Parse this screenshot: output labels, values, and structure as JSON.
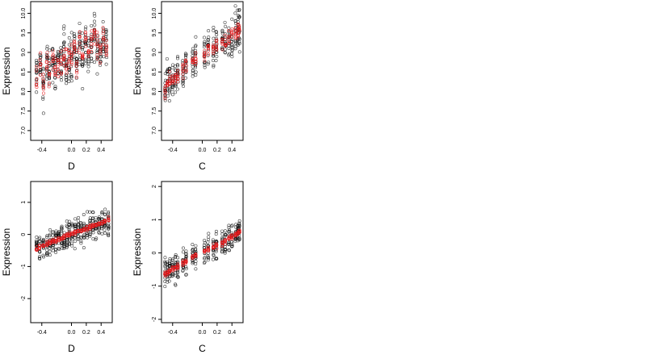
{
  "colors": {
    "observed": "#000000",
    "fitted": "#e8191b",
    "background": "#ffffff"
  },
  "chart_data": [
    {
      "type": "scatter",
      "panel": "top-left",
      "title": "",
      "xlabel": "D",
      "ylabel": "Expression",
      "xlim": [
        -0.55,
        0.55
      ],
      "ylim": [
        6.75,
        10.3
      ],
      "xticks": [
        -0.4,
        0.0,
        0.2,
        0.4
      ],
      "xtick_labels": [
        "-0.4",
        "0.0",
        "0.2",
        "0.4"
      ],
      "yticks": [
        7.0,
        7.5,
        8.0,
        8.5,
        9.0,
        9.5,
        10.0
      ],
      "ytick_labels": [
        "7.0",
        "7.5",
        "8.0",
        "8.5",
        "9.0",
        "9.5",
        "10.0"
      ],
      "x_groups": [
        -0.47,
        -0.42,
        -0.38,
        -0.33,
        -0.3,
        -0.25,
        -0.22,
        -0.18,
        -0.14,
        -0.1,
        -0.07,
        -0.03,
        0.0,
        0.04,
        0.07,
        0.11,
        0.15,
        0.19,
        0.23,
        0.27,
        0.31,
        0.35,
        0.39,
        0.43,
        0.47
      ],
      "group_mean": [
        8.45,
        8.6,
        8.2,
        8.7,
        8.4,
        8.9,
        8.5,
        8.8,
        8.6,
        9.0,
        8.7,
        8.9,
        8.8,
        9.1,
        8.7,
        9.2,
        8.9,
        9.3,
        9.0,
        9.1,
        9.4,
        9.2,
        9.0,
        9.3,
        9.1
      ],
      "group_spread": 0.55,
      "fitted_spread": 0.35
    },
    {
      "type": "scatter",
      "panel": "top-right",
      "title": "",
      "xlabel": "C",
      "ylabel": "Expression",
      "xlim": [
        -0.55,
        0.55
      ],
      "ylim": [
        6.75,
        10.3
      ],
      "xticks": [
        -0.4,
        0.0,
        0.2,
        0.4
      ],
      "xtick_labels": [
        "-0.4",
        "0.0",
        "0.2",
        "0.4"
      ],
      "yticks": [
        7.0,
        7.5,
        8.0,
        8.5,
        9.0,
        9.5,
        10.0
      ],
      "ytick_labels": [
        "7.0",
        "7.5",
        "8.0",
        "8.5",
        "9.0",
        "9.5",
        "10.0"
      ],
      "x_groups": [
        -0.5,
        -0.47,
        -0.44,
        -0.4,
        -0.36,
        -0.33,
        -0.26,
        -0.22,
        -0.13,
        -0.09,
        0.03,
        0.08,
        0.15,
        0.19,
        0.27,
        0.31,
        0.36,
        0.4,
        0.45,
        0.48,
        0.5
      ],
      "group_mean": [
        8.05,
        8.2,
        8.25,
        8.3,
        8.35,
        8.45,
        8.55,
        8.7,
        8.8,
        8.85,
        8.95,
        9.05,
        9.1,
        9.15,
        9.25,
        9.3,
        9.35,
        9.45,
        9.5,
        9.55,
        9.6
      ],
      "group_spread": 0.45,
      "fitted_spread": 0.18
    },
    {
      "type": "scatter",
      "panel": "bottom-left",
      "title": "",
      "xlabel": "D",
      "ylabel": "Expression",
      "xlim": [
        -0.55,
        0.55
      ],
      "ylim": [
        -2.75,
        1.65
      ],
      "xticks": [
        -0.4,
        0.0,
        0.2,
        0.4
      ],
      "xtick_labels": [
        "-0.4",
        "0.0",
        "0.2",
        "0.4"
      ],
      "yticks": [
        -2,
        -1,
        0,
        1
      ],
      "ytick_labels": [
        "-2",
        "-1",
        "0",
        "1"
      ],
      "x_groups": [
        -0.47,
        -0.43,
        -0.38,
        -0.33,
        -0.29,
        -0.25,
        -0.21,
        -0.17,
        -0.13,
        -0.1,
        -0.06,
        -0.03,
        0.01,
        0.05,
        0.09,
        0.13,
        0.17,
        0.21,
        0.25,
        0.29,
        0.33,
        0.37,
        0.41,
        0.45,
        0.5
      ],
      "group_mean": [
        -0.45,
        -0.4,
        -0.35,
        -0.3,
        -0.25,
        -0.2,
        -0.18,
        -0.15,
        -0.1,
        -0.07,
        -0.04,
        0.0,
        0.03,
        0.06,
        0.1,
        0.13,
        0.16,
        0.2,
        0.23,
        0.26,
        0.3,
        0.33,
        0.36,
        0.4,
        0.45
      ],
      "group_spread": 0.4,
      "fitted_spread": 0.06
    },
    {
      "type": "scatter",
      "panel": "bottom-right",
      "title": "",
      "xlabel": "C",
      "ylabel": "Expression",
      "xlim": [
        -0.55,
        0.55
      ],
      "ylim": [
        -2.1,
        2.15
      ],
      "xticks": [
        -0.4,
        0.0,
        0.2,
        0.4
      ],
      "xtick_labels": [
        "-0.4",
        "0.0",
        "0.2",
        "0.4"
      ],
      "yticks": [
        -2,
        -1,
        0,
        1,
        2
      ],
      "ytick_labels": [
        "-2",
        "-1",
        "0",
        "1",
        "2"
      ],
      "x_groups": [
        -0.5,
        -0.47,
        -0.44,
        -0.4,
        -0.36,
        -0.33,
        -0.26,
        -0.22,
        -0.13,
        -0.09,
        0.03,
        0.08,
        0.15,
        0.19,
        0.27,
        0.31,
        0.36,
        0.4,
        0.45,
        0.48,
        0.5
      ],
      "group_mean": [
        -0.65,
        -0.6,
        -0.55,
        -0.5,
        -0.45,
        -0.4,
        -0.3,
        -0.25,
        -0.12,
        -0.08,
        0.05,
        0.1,
        0.18,
        0.22,
        0.3,
        0.35,
        0.42,
        0.48,
        0.55,
        0.6,
        0.65
      ],
      "group_spread": 0.4,
      "fitted_spread": 0.07
    }
  ]
}
